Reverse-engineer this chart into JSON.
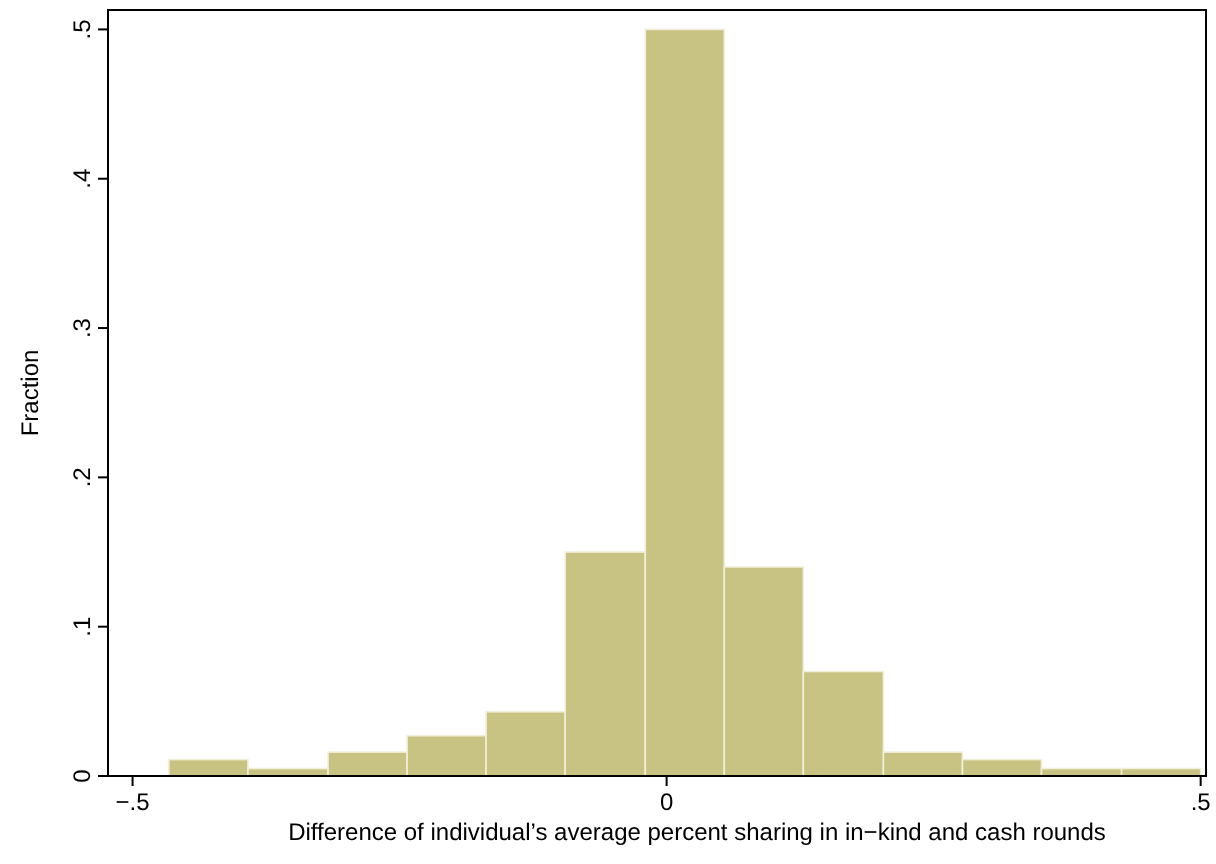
{
  "chart_data": {
    "type": "histogram",
    "xlabel": "Difference of individual’s average percent sharing in in−kind and cash rounds",
    "ylabel": "Fraction",
    "bins": [
      -0.466,
      -0.392,
      -0.317,
      -0.243,
      -0.169,
      -0.095,
      -0.02,
      0.054,
      0.128,
      0.203,
      0.277,
      0.351,
      0.426,
      0.5
    ],
    "values": [
      0.011,
      0.005,
      0.016,
      0.027,
      0.043,
      0.15,
      0.5,
      0.14,
      0.07,
      0.016,
      0.011,
      0.005,
      0.005
    ],
    "color": "#c9c383",
    "xlim": [
      -0.523,
      0.505
    ],
    "xticks": [
      {
        "value": -0.5,
        "label": "−.5"
      },
      {
        "value": 0,
        "label": "0"
      },
      {
        "value": 0.5,
        "label": ".5"
      }
    ],
    "ylim": [
      0,
      0.513
    ],
    "yticks": [
      {
        "value": 0,
        "label": "0"
      },
      {
        "value": 0.1,
        "label": ".1"
      },
      {
        "value": 0.2,
        "label": ".2"
      },
      {
        "value": 0.3,
        "label": ".3"
      },
      {
        "value": 0.4,
        "label": ".4"
      },
      {
        "value": 0.5,
        "label": ".5"
      }
    ],
    "grid": false
  }
}
